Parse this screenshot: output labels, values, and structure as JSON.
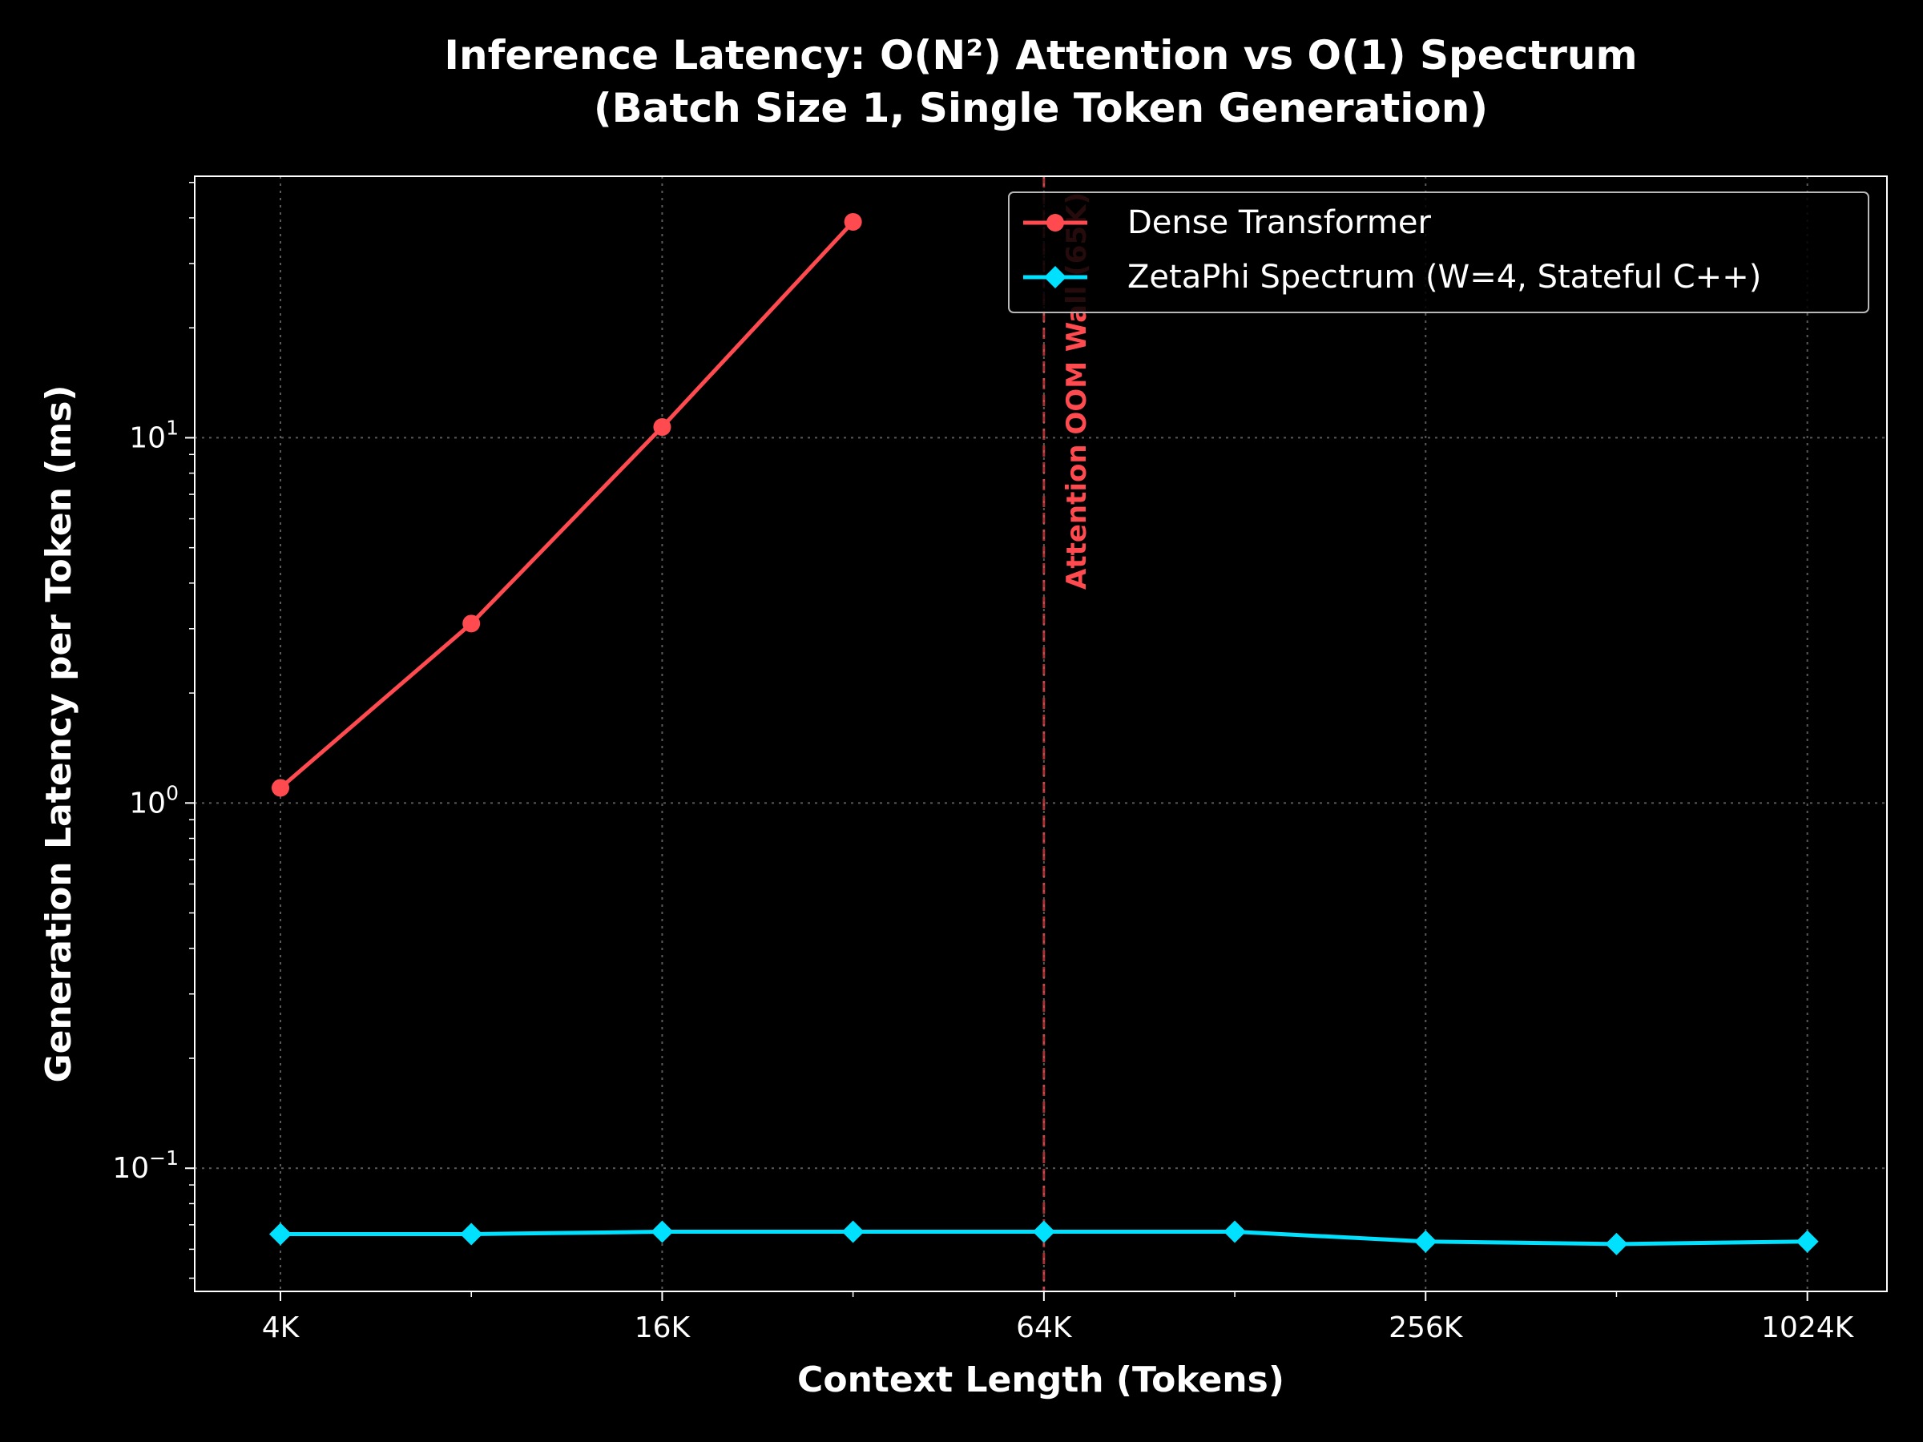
{
  "chart_data": {
    "type": "line",
    "title_line1": "Inference Latency: O(N²) Attention vs O(1) Spectrum",
    "title_line2": "(Batch Size 1, Single Token Generation)",
    "xlabel": "Context Length (Tokens)",
    "ylabel": "Generation Latency per Token (ms)",
    "x_scale": "log2",
    "y_scale": "log10",
    "xlim": [
      3000,
      1400000
    ],
    "ylim": [
      0.046,
      52
    ],
    "grid": true,
    "legend_position": "top-right",
    "x_ticks": [
      {
        "value": 4096,
        "label": "4K"
      },
      {
        "value": 16384,
        "label": "16K"
      },
      {
        "value": 65536,
        "label": "64K"
      },
      {
        "value": 262144,
        "label": "256K"
      },
      {
        "value": 1048576,
        "label": "1024K"
      }
    ],
    "y_ticks": [
      {
        "value": 0.1,
        "base": "10",
        "exp": "−1"
      },
      {
        "value": 1,
        "base": "10",
        "exp": "0"
      },
      {
        "value": 10,
        "base": "10",
        "exp": "1"
      }
    ],
    "series": [
      {
        "name": "Dense Transformer",
        "color": "#ff4a4f",
        "marker": "circle",
        "x": [
          4096,
          8192,
          16384,
          32768
        ],
        "y": [
          1.1,
          3.1,
          10.7,
          39
        ]
      },
      {
        "name": "ZetaPhi Spectrum (W=4, Stateful C++)",
        "color": "#00e0ff",
        "marker": "diamond",
        "x": [
          4096,
          8192,
          16384,
          32768,
          65536,
          131072,
          262144,
          524288,
          1048576
        ],
        "y": [
          0.066,
          0.066,
          0.067,
          0.067,
          0.067,
          0.067,
          0.063,
          0.062,
          0.063
        ]
      }
    ],
    "annotation": {
      "text": "Attention OOM Wall (65K)",
      "x": 65536,
      "color": "#ff4a4f"
    }
  }
}
